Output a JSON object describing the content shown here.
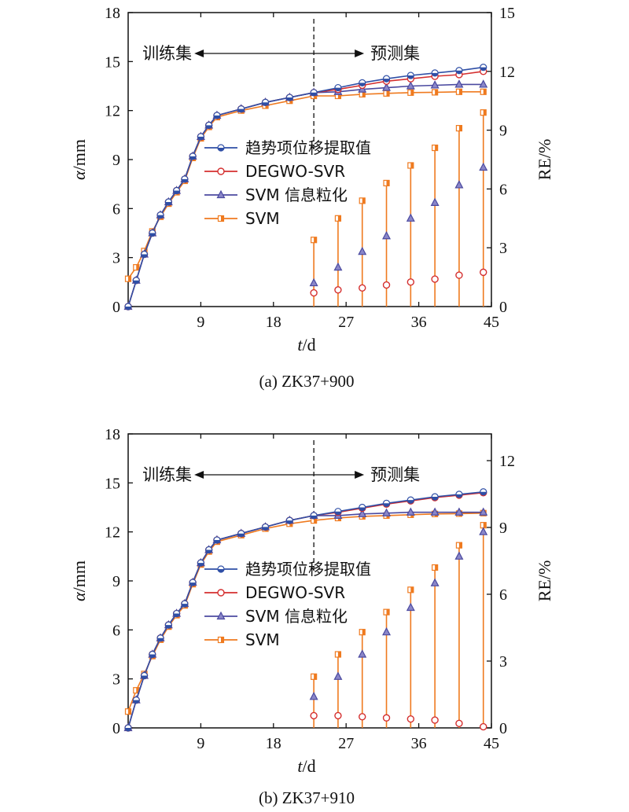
{
  "colors": {
    "trend": "#2f4fa6",
    "degwo": "#d42f2f",
    "svm_gran": "#4b4aa0",
    "svm": "#ef7a1f"
  },
  "chart_data": [
    {
      "type": "line",
      "caption": "(a) ZK37+900",
      "xlabel_italic": "t",
      "xlabel_unit": "/d",
      "ylabel_italic": "α",
      "ylabel_unit": "/mm",
      "y2label": "RE/%",
      "xlim": [
        0,
        45
      ],
      "ylim": [
        0,
        18
      ],
      "y2lim": [
        0,
        15
      ],
      "xticks": [
        9,
        18,
        27,
        36,
        45
      ],
      "yticks": [
        0,
        3,
        6,
        9,
        12,
        15,
        18
      ],
      "y2ticks": [
        0,
        3,
        6,
        9,
        12,
        15
      ],
      "split_x": 23,
      "annotation_train": "训练集",
      "annotation_predict": "预测集",
      "legend": [
        "趋势项位移提取值",
        "DEGWO-SVR",
        "SVM 信息粒化",
        "SVM"
      ],
      "x_fit": [
        0,
        1,
        2,
        3,
        4,
        5,
        6,
        7,
        8,
        9,
        10,
        11,
        14,
        17,
        20,
        23
      ],
      "trend_fit": [
        0,
        1.6,
        3.2,
        4.5,
        5.6,
        6.4,
        7.1,
        7.8,
        9.2,
        10.4,
        11.1,
        11.7,
        12.1,
        12.5,
        12.8,
        13.1
      ],
      "svm_fit": [
        1.7,
        2.4,
        3.4,
        4.6,
        5.5,
        6.3,
        7.0,
        7.7,
        9.1,
        10.3,
        11.0,
        11.6,
        12.0,
        12.3,
        12.6,
        12.9
      ],
      "x_pred": [
        23,
        26,
        29,
        32,
        35,
        38,
        41,
        44
      ],
      "series": [
        {
          "name": "趋势项位移提取值",
          "values": [
            13.1,
            13.4,
            13.7,
            13.95,
            14.15,
            14.3,
            14.45,
            14.65
          ]
        },
        {
          "name": "DEGWO-SVR",
          "values": [
            13.05,
            13.3,
            13.55,
            13.8,
            13.95,
            14.1,
            14.2,
            14.4
          ]
        },
        {
          "name": "SVM 信息粒化",
          "values": [
            12.95,
            13.15,
            13.3,
            13.4,
            13.5,
            13.55,
            13.6,
            13.6
          ]
        },
        {
          "name": "SVM",
          "values": [
            12.8,
            12.9,
            13.0,
            13.05,
            13.1,
            13.12,
            13.15,
            13.15
          ]
        }
      ],
      "re": {
        "x": [
          23,
          26,
          29,
          32,
          35,
          38,
          41,
          44
        ],
        "svm": [
          3.4,
          4.5,
          5.4,
          6.3,
          7.2,
          8.1,
          9.1,
          9.9
        ],
        "svm_gran": [
          1.2,
          2.0,
          2.8,
          3.6,
          4.5,
          5.3,
          6.2,
          7.1
        ],
        "degwo": [
          0.7,
          0.85,
          0.95,
          1.1,
          1.25,
          1.4,
          1.6,
          1.75
        ]
      }
    },
    {
      "type": "line",
      "caption": "(b) ZK37+910",
      "xlabel_italic": "t",
      "xlabel_unit": "/d",
      "ylabel_italic": "α",
      "ylabel_unit": "/mm",
      "y2label": "RE/%",
      "xlim": [
        0,
        45
      ],
      "ylim": [
        0,
        18
      ],
      "y2lim": [
        0,
        13.2
      ],
      "xticks": [
        9,
        18,
        27,
        36,
        45
      ],
      "yticks": [
        0,
        3,
        6,
        9,
        12,
        15,
        18
      ],
      "y2ticks": [
        0,
        3,
        6,
        9,
        12
      ],
      "split_x": 23,
      "annotation_train": "训练集",
      "annotation_predict": "预测集",
      "legend": [
        "趋势项位移提取值",
        "DEGWO-SVR",
        "SVM 信息粒化",
        "SVM"
      ],
      "x_fit": [
        0,
        1,
        2,
        3,
        4,
        5,
        6,
        7,
        8,
        9,
        10,
        11,
        14,
        17,
        20,
        23
      ],
      "trend_fit": [
        0,
        1.7,
        3.2,
        4.5,
        5.5,
        6.3,
        7.0,
        7.6,
        8.9,
        10.1,
        10.9,
        11.5,
        11.9,
        12.3,
        12.7,
        13.0
      ],
      "svm_fit": [
        1.0,
        2.3,
        3.3,
        4.4,
        5.4,
        6.2,
        6.9,
        7.5,
        8.8,
        10.0,
        10.8,
        11.4,
        11.8,
        12.2,
        12.5,
        12.7
      ],
      "x_pred": [
        23,
        26,
        29,
        32,
        35,
        38,
        41,
        44
      ],
      "series": [
        {
          "name": "趋势项位移提取值",
          "values": [
            13.0,
            13.25,
            13.5,
            13.75,
            13.95,
            14.15,
            14.3,
            14.45
          ]
        },
        {
          "name": "DEGWO-SVR",
          "values": [
            12.95,
            13.2,
            13.45,
            13.7,
            13.9,
            14.1,
            14.25,
            14.4
          ]
        },
        {
          "name": "SVM 信息粒化",
          "values": [
            12.85,
            13.0,
            13.1,
            13.15,
            13.2,
            13.2,
            13.2,
            13.2
          ]
        },
        {
          "name": "SVM",
          "values": [
            12.75,
            12.85,
            12.95,
            13.0,
            13.05,
            13.1,
            13.12,
            13.15
          ]
        }
      ],
      "re": {
        "x": [
          23,
          26,
          29,
          32,
          35,
          38,
          41,
          44
        ],
        "svm": [
          2.3,
          3.3,
          4.3,
          5.2,
          6.2,
          7.2,
          8.2,
          9.1
        ],
        "svm_gran": [
          1.4,
          2.3,
          3.3,
          4.3,
          5.4,
          6.5,
          7.7,
          8.8
        ],
        "degwo": [
          0.55,
          0.55,
          0.5,
          0.45,
          0.4,
          0.35,
          0.2,
          0.05
        ]
      }
    }
  ]
}
